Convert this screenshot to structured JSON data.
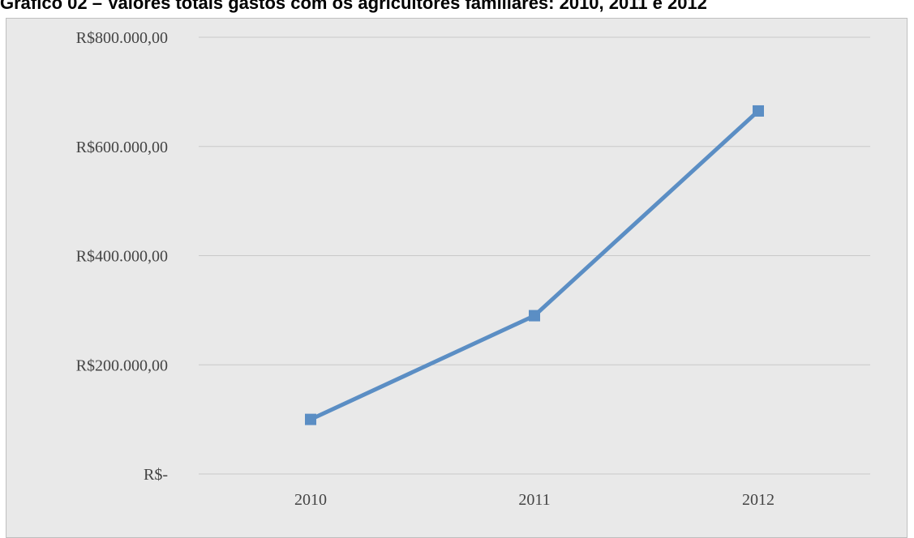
{
  "title": "Gráfico 02 – Valores totais gastos com os agricultores familiares: 2010, 2011 e 2012",
  "chart_data": {
    "type": "line",
    "categories": [
      "2010",
      "2011",
      "2012"
    ],
    "series": [
      {
        "values": [
          100000,
          290000,
          665000
        ],
        "color": "#5b8ec4"
      }
    ],
    "ylim": [
      0,
      800000
    ],
    "yticks": [
      0,
      200000,
      400000,
      600000,
      800000
    ],
    "ytick_labels": [
      "R$-",
      "R$200.000,00",
      "R$400.000,00",
      "R$600.000,00",
      "R$800.000,00"
    ],
    "grid": true,
    "background": "#e9e9e9",
    "gridline_color": "#c9c9c9"
  }
}
